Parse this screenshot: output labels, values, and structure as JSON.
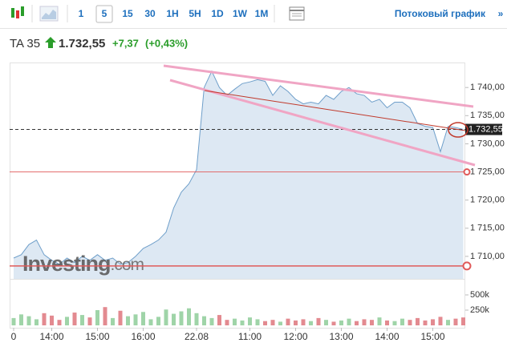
{
  "toolbar": {
    "intervals": [
      "1",
      "5",
      "15",
      "30",
      "1H",
      "5H",
      "1D",
      "1W",
      "1M"
    ],
    "selected": "5",
    "link": "Потоковый график",
    "more": "»"
  },
  "header": {
    "symbol": "TA 35",
    "price": "1.732,55",
    "change": "+7,37",
    "change_pct": "(+0,43%)"
  },
  "chart_data": {
    "type": "area",
    "categories": [
      "0",
      null,
      null,
      null,
      null,
      "14:00",
      null,
      null,
      null,
      null,
      null,
      "15:00",
      null,
      null,
      null,
      null,
      null,
      "16:00",
      null,
      null,
      null,
      null,
      null,
      null,
      "22.08",
      null,
      null,
      null,
      null,
      null,
      null,
      "11:00",
      null,
      null,
      null,
      null,
      null,
      "12:00",
      null,
      null,
      null,
      null,
      null,
      "13:00",
      null,
      null,
      null,
      null,
      null,
      "14:00",
      null,
      null,
      null,
      null,
      null,
      "15:00",
      null,
      null,
      null,
      null
    ],
    "values": [
      1709.7,
      1710.3,
      1712.1,
      1712.9,
      1710.3,
      1709.3,
      1708.6,
      1709.7,
      1708.9,
      1710,
      1709.3,
      1710.3,
      1709.3,
      1709.7,
      1708.6,
      1708.9,
      1710,
      1711.4,
      1712.1,
      1712.9,
      1714.3,
      1718.6,
      1721.4,
      1722.9,
      1725.4,
      1740,
      1742.9,
      1740,
      1738.6,
      1739.7,
      1740.7,
      1741,
      1741.4,
      1741.1,
      1738.6,
      1740.3,
      1739.3,
      1737.9,
      1737.1,
      1737.4,
      1737.1,
      1738.6,
      1737.9,
      1739.3,
      1740,
      1738.9,
      1738.6,
      1737.4,
      1737.9,
      1736.4,
      1737.4,
      1737.4,
      1736.4,
      1733.6,
      1733.1,
      1732.9,
      1728.6,
      1733.1,
      1732.9,
      1732.55
    ],
    "color": "#6f9fca",
    "fill": "#dde8f3",
    "ylim": [
      1706,
      1744.3
    ],
    "yticks": [
      {
        "value": 1710,
        "label": "1 710,00"
      },
      {
        "value": 1715,
        "label": "1 715,00"
      },
      {
        "value": 1720,
        "label": "1 720,00"
      },
      {
        "value": 1725,
        "label": "1 725,00"
      },
      {
        "value": 1730,
        "label": "1 730,00"
      },
      {
        "value": 1735,
        "label": "1 735,00"
      },
      {
        "value": 1740,
        "label": "1 740,00"
      }
    ],
    "levels": [
      1725,
      1708.3
    ],
    "level_color": "#e05a5a",
    "last_price": 1732.55,
    "last_price_label": "1.732,55",
    "watermark": [
      "Investing",
      ".com"
    ],
    "volume": {
      "values": [
        120000,
        180000,
        150000,
        100000,
        200000,
        160000,
        90000,
        140000,
        210000,
        170000,
        130000,
        250000,
        300000,
        120000,
        240000,
        150000,
        180000,
        220000,
        100000,
        140000,
        260000,
        190000,
        230000,
        280000,
        200000,
        150000,
        120000,
        170000,
        90000,
        110000,
        80000,
        130000,
        100000,
        70000,
        90000,
        60000,
        110000,
        80000,
        100000,
        70000,
        120000,
        90000,
        60000,
        80000,
        110000,
        70000,
        100000,
        90000,
        130000,
        80000,
        70000,
        110000,
        90000,
        120000,
        80000,
        100000,
        140000,
        90000,
        110000,
        130000
      ],
      "ylim": [
        0,
        737000
      ],
      "yticks": [
        {
          "value": 250000,
          "label": "250k"
        },
        {
          "value": 500000,
          "label": "500k"
        }
      ],
      "up_color": "#9fd4a8",
      "down_color": "#e38a90"
    }
  }
}
